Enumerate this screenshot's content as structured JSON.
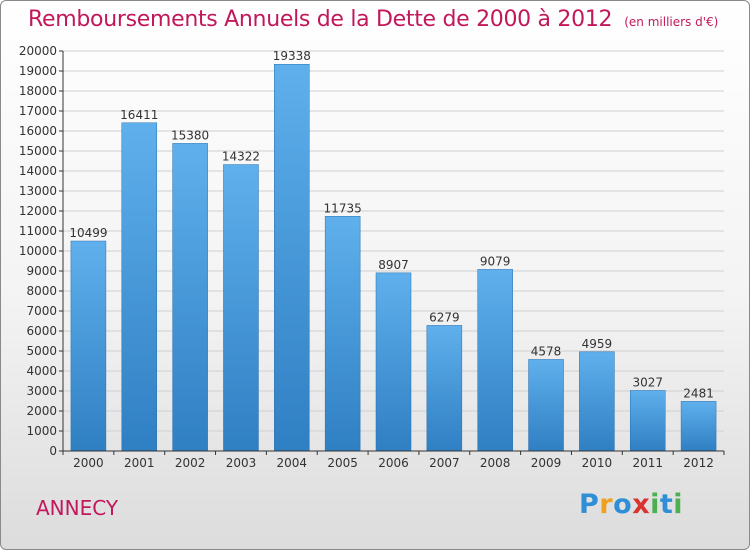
{
  "title": "Remboursements Annuels de la Dette de 2000 à 2012",
  "unit_note": "(en milliers d'€)",
  "city": "ANNECY",
  "logo": {
    "text": "Proxiti",
    "letters": [
      {
        "char": "P",
        "color": "#2e8fd6"
      },
      {
        "char": "r",
        "color": "#f0a01e"
      },
      {
        "char": "o",
        "color": "#2e8fd6"
      },
      {
        "char": "x",
        "color": "#d8332f"
      },
      {
        "char": "i",
        "color": "#4caf50"
      },
      {
        "char": "t",
        "color": "#2e8fd6"
      },
      {
        "char": "i",
        "color": "#4caf50"
      }
    ]
  },
  "colors": {
    "title": "#c2185b",
    "bar_top": "#5fb0ec",
    "bar_bottom": "#2f7fc3",
    "grid": "#d0d0d0",
    "axis": "#333333"
  },
  "chart_data": {
    "type": "bar",
    "title": "Remboursements Annuels de la Dette de 2000 à 2012",
    "subtitle": "(en milliers d'€)",
    "xlabel": "",
    "ylabel": "",
    "categories": [
      "2000",
      "2001",
      "2002",
      "2003",
      "2004",
      "2005",
      "2006",
      "2007",
      "2008",
      "2009",
      "2010",
      "2011",
      "2012"
    ],
    "values": [
      10499,
      16411,
      15380,
      14322,
      19338,
      11735,
      8907,
      6279,
      9079,
      4578,
      4959,
      3027,
      2481
    ],
    "ylim": [
      0,
      20000
    ],
    "yticks": [
      0,
      1000,
      2000,
      3000,
      4000,
      5000,
      6000,
      7000,
      8000,
      9000,
      10000,
      11000,
      12000,
      13000,
      14000,
      15000,
      16000,
      17000,
      18000,
      19000,
      20000
    ],
    "grid": true,
    "data_labels": true
  }
}
